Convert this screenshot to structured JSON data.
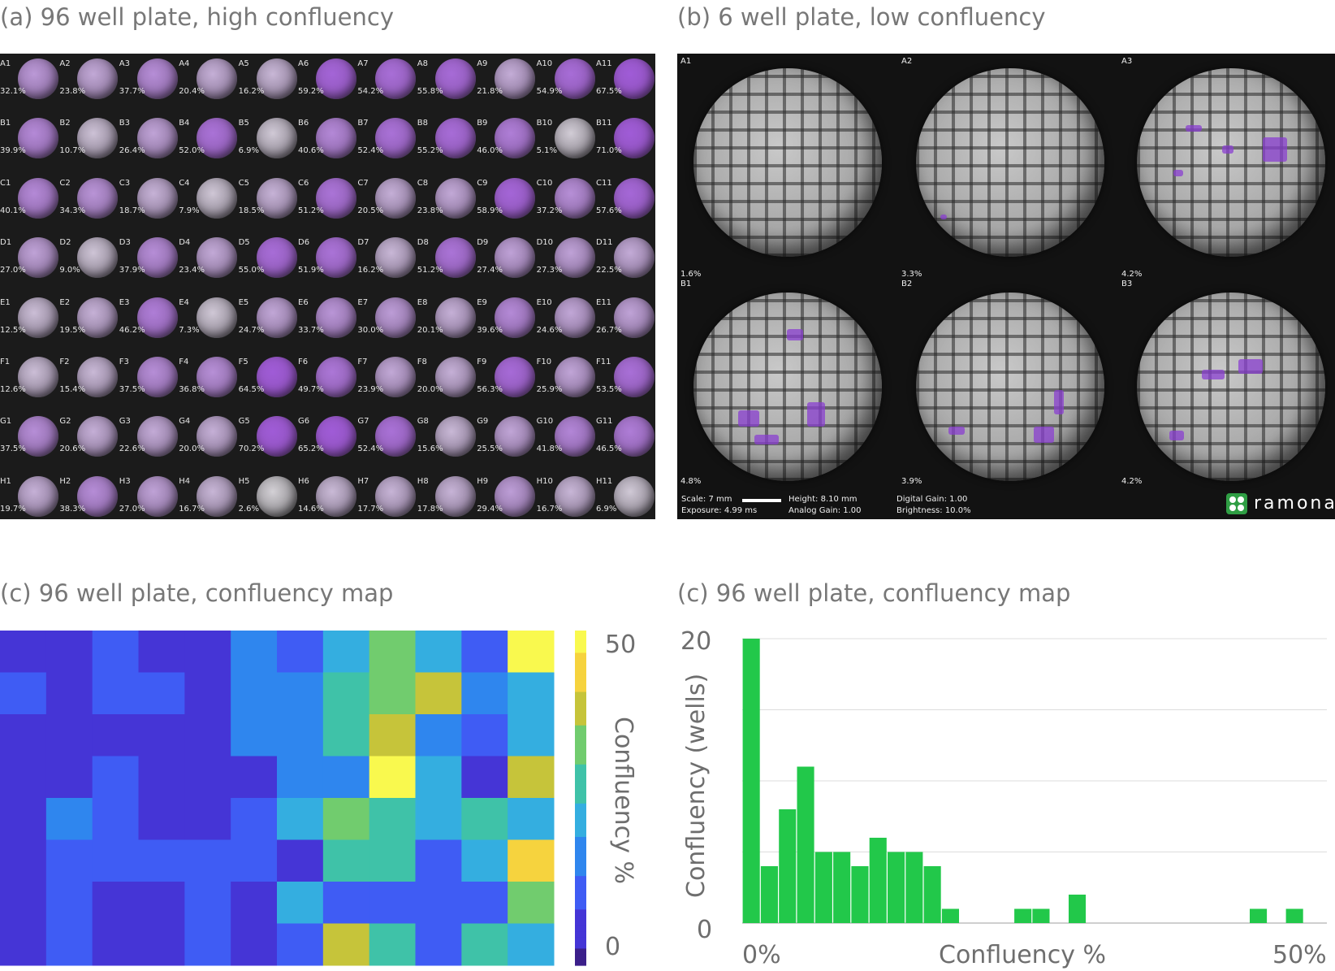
{
  "panels": {
    "a_title": "(a) 96 well plate, high confluency",
    "b_title": "(b) 6 well plate, low confluency",
    "c_title": "(c) 96 well plate, confluency map",
    "d_title": "(c) 96 well plate, confluency map"
  },
  "plate96": {
    "rows": [
      "A",
      "B",
      "C",
      "D",
      "E",
      "F",
      "G",
      "H"
    ],
    "cols": [
      "1",
      "2",
      "3",
      "4",
      "5",
      "6",
      "7",
      "8",
      "9",
      "10",
      "11"
    ],
    "values": [
      [
        "32.1%",
        "23.8%",
        "37.7%",
        "20.4%",
        "16.2%",
        "59.2%",
        "54.2%",
        "55.8%",
        "21.8%",
        "54.9%",
        "67.5%"
      ],
      [
        "39.9%",
        "10.7%",
        "26.4%",
        "52.0%",
        "6.9%",
        "40.6%",
        "52.4%",
        "55.2%",
        "46.0%",
        "5.1%",
        "71.0%"
      ],
      [
        "40.1%",
        "34.3%",
        "18.7%",
        "7.9%",
        "18.5%",
        "51.2%",
        "20.5%",
        "23.8%",
        "58.9%",
        "37.2%",
        "57.6%"
      ],
      [
        "27.0%",
        "9.0%",
        "37.9%",
        "23.4%",
        "55.0%",
        "51.9%",
        "16.2%",
        "51.2%",
        "27.4%",
        "27.3%",
        "22.5%"
      ],
      [
        "12.5%",
        "19.5%",
        "46.2%",
        "7.3%",
        "24.7%",
        "33.7%",
        "30.0%",
        "20.1%",
        "39.6%",
        "24.6%",
        "26.7%"
      ],
      [
        "12.6%",
        "15.4%",
        "37.5%",
        "36.8%",
        "64.5%",
        "49.7%",
        "23.9%",
        "20.0%",
        "56.3%",
        "25.9%",
        "53.5%"
      ],
      [
        "37.5%",
        "20.6%",
        "22.6%",
        "20.0%",
        "70.2%",
        "65.2%",
        "52.4%",
        "15.6%",
        "25.5%",
        "41.8%",
        "46.5%"
      ],
      [
        "19.7%",
        "38.3%",
        "27.0%",
        "16.7%",
        "2.6%",
        "14.6%",
        "17.7%",
        "17.8%",
        "29.4%",
        "16.7%",
        "6.9%"
      ]
    ]
  },
  "plate6": {
    "wells": [
      {
        "id": "A1",
        "value": "1.6%"
      },
      {
        "id": "A2",
        "value": "3.3%"
      },
      {
        "id": "A3",
        "value": "4.2%"
      },
      {
        "id": "B1",
        "value": "4.8%"
      },
      {
        "id": "B2",
        "value": "3.9%"
      },
      {
        "id": "B3",
        "value": "4.2%"
      }
    ],
    "footer": {
      "scale": "Scale: 7 mm",
      "exposure": "Exposure: 4.99 ms",
      "height": "Height: 8.10 mm",
      "analog_gain": "Analog Gain: 1.00",
      "digital_gain": "Digital Gain: 1.00",
      "brightness": "Brightness: 10.0%"
    },
    "logo_text": "ramona",
    "logo_color": "#2f9e44"
  },
  "chart_data": [
    {
      "type": "heatmap",
      "title": "(c) 96 well plate, confluency map",
      "rows": 8,
      "cols": 12,
      "values": [
        [
          8,
          5,
          10,
          7,
          5,
          21,
          13,
          24,
          34,
          25,
          14,
          55
        ],
        [
          10,
          6,
          15,
          13,
          6,
          17,
          19,
          30,
          34,
          40,
          17,
          27
        ],
        [
          6,
          4,
          9,
          4,
          5,
          19,
          21,
          32,
          43,
          20,
          14,
          24
        ],
        [
          6,
          5,
          15,
          5,
          4,
          9,
          18,
          19,
          54,
          24,
          6,
          42
        ],
        [
          7,
          16,
          12,
          7,
          4,
          15,
          27,
          35,
          31,
          24,
          32,
          25
        ],
        [
          8,
          14,
          12,
          11,
          11,
          11,
          6,
          32,
          32,
          14,
          23,
          46
        ],
        [
          6,
          14,
          5,
          5,
          10,
          6,
          25,
          13,
          10,
          10,
          10,
          34
        ],
        [
          7,
          11,
          5,
          5,
          12,
          6,
          11,
          44,
          31,
          15,
          32,
          24
        ]
      ],
      "colorbar": {
        "label": "Confluency %",
        "min": 0,
        "max": 55,
        "ticks": [
          "0",
          "50"
        ]
      },
      "colormap": [
        "#3b1f8a",
        "#4535d6",
        "#3f5cf4",
        "#2f86ee",
        "#34aee0",
        "#3fc2a8",
        "#71cc6e",
        "#c6c43a",
        "#f6d33e",
        "#f9f94e"
      ]
    },
    {
      "type": "bar",
      "title": "(c) 96 well plate, confluency map",
      "xlabel": "Confluency %",
      "ylabel": "Confluency (wells)",
      "x_tick_labels": [
        "0%",
        "50%"
      ],
      "y_tick_labels": [
        "0",
        "20"
      ],
      "ylim": [
        0,
        20
      ],
      "xlim": [
        0,
        50
      ],
      "bin_width": 1.6,
      "values": [
        20,
        4,
        8,
        11,
        5,
        5,
        4,
        6,
        5,
        5,
        4,
        1,
        0,
        0,
        0,
        1,
        1,
        0,
        2,
        0,
        0,
        0,
        0,
        0,
        0,
        0,
        0,
        0,
        1,
        0,
        1
      ],
      "bar_color": "#22c84a",
      "grid": true
    }
  ]
}
